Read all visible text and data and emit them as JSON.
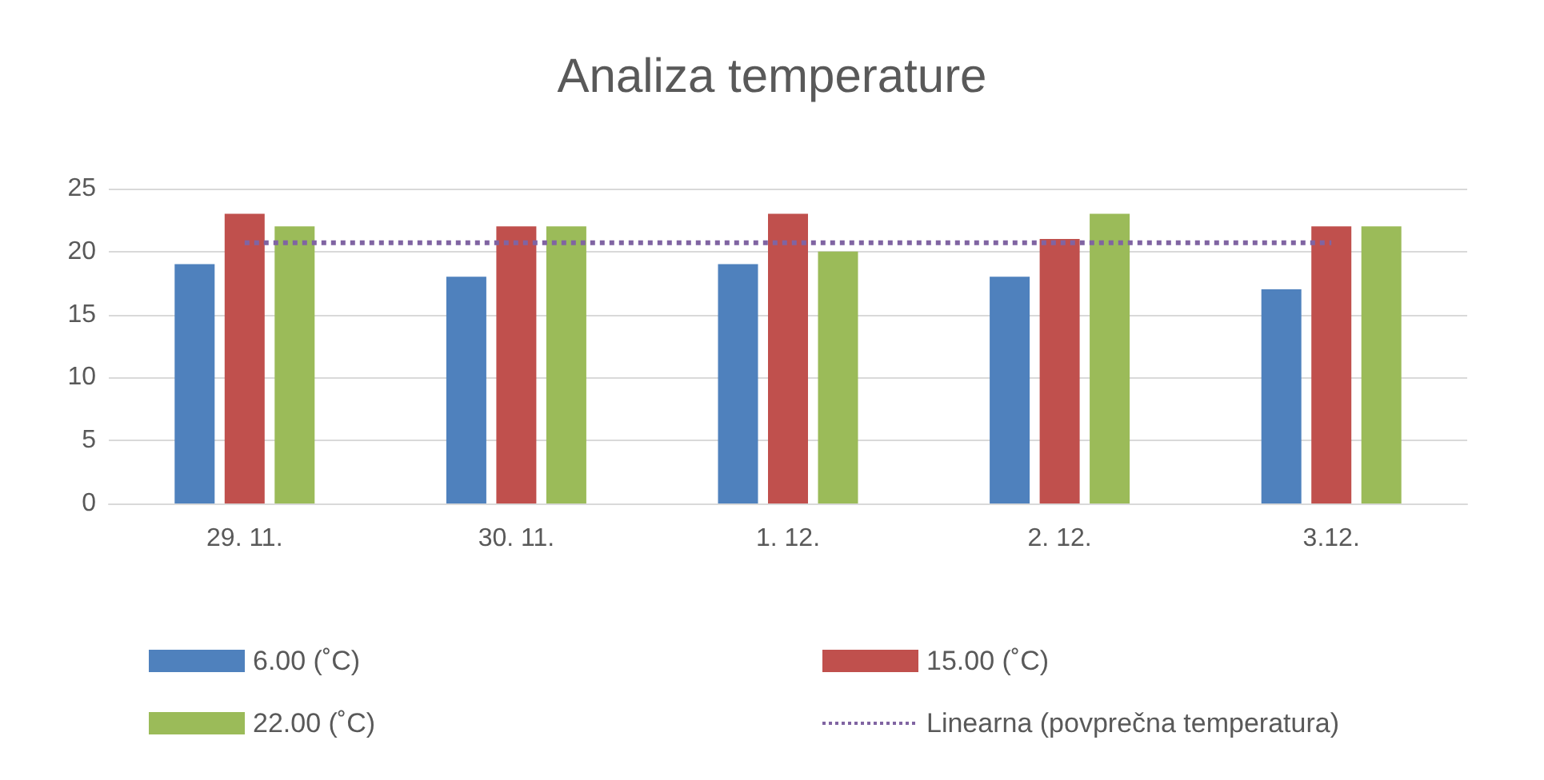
{
  "chart_data": {
    "type": "bar",
    "title": "Analiza temperature",
    "categories": [
      "29. 11.",
      "30. 11.",
      "1. 12.",
      "2. 12.",
      "3.12."
    ],
    "series": [
      {
        "name": "6.00 (˚C)",
        "color": "#4f81bd",
        "values": [
          19,
          18,
          19,
          18,
          17
        ]
      },
      {
        "name": "15.00 (˚C)",
        "color": "#c0504d",
        "values": [
          23,
          22,
          23,
          21,
          22
        ]
      },
      {
        "name": "22.00 (˚C)",
        "color": "#9bbb59",
        "values": [
          22,
          22,
          20,
          23,
          22
        ]
      },
      {
        "name": "Linearna (povprečna temperatura)",
        "type": "line",
        "color": "#8064a2",
        "line_style": "dotted",
        "marker": "none",
        "values": [
          20.7,
          20.7,
          20.7,
          20.7,
          20.7
        ]
      }
    ],
    "ylim": [
      0,
      25
    ],
    "yticks": [
      0,
      5,
      10,
      15,
      20,
      25
    ],
    "grid": "y",
    "legend": "bottom"
  }
}
